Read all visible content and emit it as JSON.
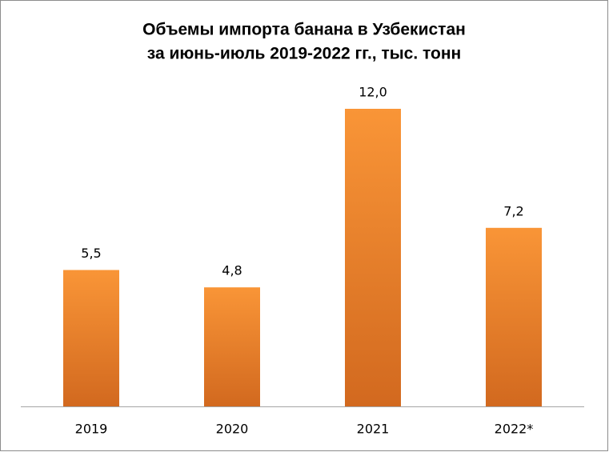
{
  "chart_data": {
    "type": "bar",
    "title": [
      "Объемы импорта банана в Узбекистан",
      "за июнь-июль 2019-2022 гг., тыс. тонн"
    ],
    "categories": [
      "2019",
      "2020",
      "2021",
      "2022*"
    ],
    "values": [
      5.5,
      4.8,
      12.0,
      7.2
    ],
    "value_labels": [
      "5,5",
      "4,8",
      "12,0",
      "7,2"
    ],
    "color": "#f99537",
    "ylim": [
      0,
      14
    ]
  }
}
